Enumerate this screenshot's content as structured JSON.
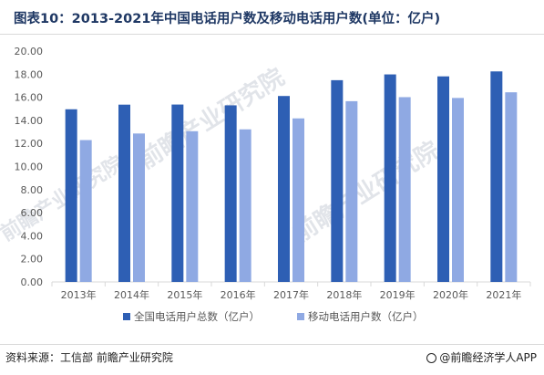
{
  "title": "图表10：2013-2021年中国电话用户数及移动电话用户数(单位：亿户)",
  "source": "资料来源：工信部 前瞻产业研究院",
  "brand": "@前瞻经济学人APP",
  "watermark": "前瞻产业研究院",
  "colors": {
    "series1": "#2e5fb4",
    "series2": "#8fa9e3",
    "axis": "#d9d9d9",
    "text": "#595959"
  },
  "chart_data": {
    "type": "bar",
    "categories": [
      "2013年",
      "2014年",
      "2015年",
      "2016年",
      "2017年",
      "2018年",
      "2019年",
      "2020年",
      "2021年"
    ],
    "series": [
      {
        "name": "全国电话用户总数（亿户）",
        "values": [
          14.96,
          15.36,
          15.37,
          15.3,
          16.11,
          17.48,
          17.98,
          17.81,
          18.24
        ]
      },
      {
        "name": "移动电话用户数（亿户）",
        "values": [
          12.29,
          12.86,
          13.06,
          13.22,
          14.17,
          15.66,
          16.01,
          15.94,
          16.43
        ]
      }
    ],
    "ylim": [
      0,
      20
    ],
    "yticks": [
      "0.00",
      "2.00",
      "4.00",
      "6.00",
      "8.00",
      "10.00",
      "12.00",
      "14.00",
      "16.00",
      "18.00",
      "20.00"
    ],
    "legend_position": "bottom",
    "grid": false
  }
}
